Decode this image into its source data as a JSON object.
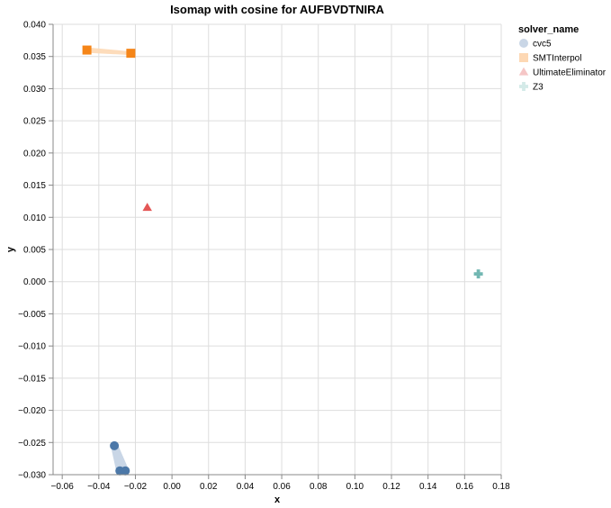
{
  "chart_data": {
    "type": "scatter",
    "title": "Isomap with cosine for AUFBVDTNIRA",
    "xlabel": "x",
    "ylabel": "y",
    "xlim": [
      -0.065,
      0.18
    ],
    "ylim": [
      -0.03,
      0.04
    ],
    "x_ticks": [
      -0.06,
      -0.04,
      -0.02,
      0.0,
      0.02,
      0.04,
      0.06,
      0.08,
      0.1,
      0.12,
      0.14,
      0.16,
      0.18
    ],
    "x_tick_labels": [
      "−0.06",
      "−0.04",
      "−0.02",
      "0.00",
      "0.02",
      "0.04",
      "0.06",
      "0.08",
      "0.10",
      "0.12",
      "0.14",
      "0.16",
      "0.18"
    ],
    "y_ticks": [
      0.04,
      0.035,
      0.03,
      0.025,
      0.02,
      0.015,
      0.01,
      0.005,
      0.0,
      -0.005,
      -0.01,
      -0.015,
      -0.02,
      -0.025,
      -0.03
    ],
    "y_tick_labels": [
      "0.040",
      "0.035",
      "0.030",
      "0.025",
      "0.020",
      "0.015",
      "0.010",
      "0.005",
      "0.000",
      "−0.005",
      "−0.010",
      "−0.015",
      "−0.020",
      "−0.025",
      "−0.030"
    ],
    "grid": true,
    "legend_title": "solver_name",
    "legend_position": "right",
    "series": [
      {
        "name": "cvc5",
        "shape": "circle",
        "color": "#4c78a8",
        "area_color": "#c9d6e6",
        "points": [
          [
            -0.0315,
            -0.0255
          ],
          [
            -0.0285,
            -0.0294
          ],
          [
            -0.0255,
            -0.0294
          ]
        ]
      },
      {
        "name": "SMTInterpol",
        "shape": "square",
        "color": "#f58518",
        "area_color": "#fdd8b4",
        "points": [
          [
            -0.0465,
            0.036
          ],
          [
            -0.0225,
            0.0355
          ]
        ]
      },
      {
        "name": "UltimateEliminator",
        "shape": "triangle",
        "color": "#e45756",
        "area_color": "#f5c6c6",
        "points": [
          [
            -0.0135,
            0.0115
          ]
        ]
      },
      {
        "name": "Z3",
        "shape": "cross",
        "color": "#72b7b2",
        "area_color": "#d4eae8",
        "points": [
          [
            0.1675,
            0.0012
          ]
        ]
      }
    ]
  }
}
